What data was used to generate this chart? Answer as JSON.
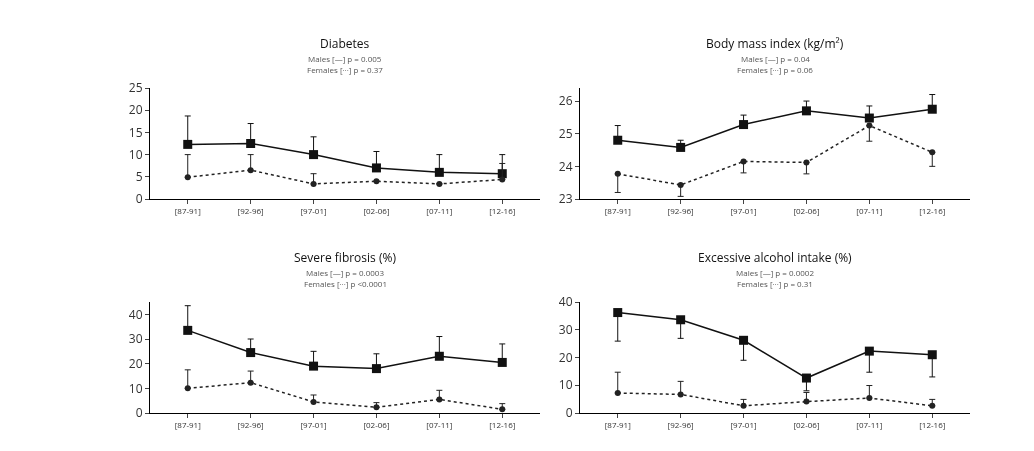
{
  "chart_data": [
    {
      "type": "line",
      "title": "Diabetes",
      "subtitle": "Males [—] p = 0.005\nFemales [···] p = 0.37",
      "categories": [
        "[87-91]",
        "[92-96]",
        "[97-01]",
        "[02-06]",
        "[07-11]",
        "[12-16]"
      ],
      "ylim": [
        0,
        25
      ],
      "yticks": [
        0,
        5,
        10,
        15,
        20,
        25
      ],
      "grid": false,
      "series": [
        {
          "color": "#111111",
          "marker": "square",
          "line_style": "solid",
          "values": [
            12.3,
            12.5,
            10,
            7,
            6,
            5.7
          ],
          "errors": [
            [
              12.3,
              18.7
            ],
            [
              12.5,
              17
            ],
            [
              10,
              14
            ],
            [
              7,
              10.7
            ],
            [
              6,
              10
            ],
            [
              5.7,
              10
            ]
          ]
        },
        {
          "color": "#222222",
          "marker": "circle",
          "line_style": "dotted",
          "values": [
            4.9,
            6.5,
            3.4,
            4,
            3.4,
            4.4
          ],
          "errors": [
            [
              4.9,
              10
            ],
            [
              6.5,
              10
            ],
            [
              3.4,
              5.7
            ],
            null,
            null,
            [
              4.4,
              8
            ]
          ]
        }
      ]
    },
    {
      "type": "line",
      "title": "Body mass index (kg/m²)",
      "subtitle": "Males [—] p = 0.04\nFemales [···] p = 0.06",
      "categories": [
        "[87-91]",
        "[92-96]",
        "[97-01]",
        "[02-06]",
        "[07-11]",
        "[12-16]"
      ],
      "ylim": [
        23,
        26.4
      ],
      "yticks": [
        23,
        24,
        25,
        26
      ],
      "grid": false,
      "series": [
        {
          "color": "#111111",
          "marker": "square",
          "line_style": "solid",
          "values": [
            24.8,
            24.58,
            25.28,
            25.7,
            25.48,
            25.75
          ],
          "errors": [
            [
              24.8,
              25.25
            ],
            [
              24.58,
              24.8
            ],
            [
              25.28,
              25.57
            ],
            [
              25.7,
              26
            ],
            [
              25.48,
              25.85
            ],
            [
              25.75,
              26.2
            ]
          ]
        },
        {
          "color": "#222222",
          "marker": "circle",
          "line_style": "dotted",
          "values": [
            23.77,
            23.43,
            24.15,
            24.12,
            25.25,
            24.43
          ],
          "errors": [
            [
              23.2,
              23.77
            ],
            [
              23.08,
              23.43
            ],
            [
              23.8,
              24.15
            ],
            [
              23.77,
              24.12
            ],
            [
              24.77,
              25.25
            ],
            [
              24,
              24.43
            ]
          ]
        }
      ]
    },
    {
      "type": "line",
      "title": "Severe fibrosis (%)",
      "subtitle": "Males [—] p = 0.0003\nFemales [···] p <0.0001",
      "categories": [
        "[87-91]",
        "[92-96]",
        "[97-01]",
        "[02-06]",
        "[07-11]",
        "[12-16]"
      ],
      "ylim": [
        0,
        45
      ],
      "yticks": [
        0,
        10,
        20,
        30,
        40
      ],
      "grid": false,
      "series": [
        {
          "color": "#111111",
          "marker": "square",
          "line_style": "solid",
          "values": [
            33.5,
            24.5,
            19,
            18,
            23,
            20.5
          ],
          "errors": [
            [
              33.5,
              43.5
            ],
            [
              24.5,
              30
            ],
            [
              19,
              25
            ],
            [
              18,
              24
            ],
            [
              23,
              31
            ],
            [
              20.5,
              28
            ]
          ]
        },
        {
          "color": "#222222",
          "marker": "circle",
          "line_style": "dotted",
          "values": [
            10,
            12.3,
            4.5,
            2.3,
            5.5,
            1.5
          ],
          "errors": [
            [
              10,
              17.5
            ],
            [
              12.3,
              17
            ],
            [
              4.5,
              7.3
            ],
            [
              2.3,
              4.2
            ],
            [
              5.5,
              9.2
            ],
            [
              1.5,
              3.8
            ]
          ]
        }
      ]
    },
    {
      "type": "line",
      "title": "Excessive alcohol intake (%)",
      "subtitle": "Males [—] p = 0.0002\nFemales [···] p = 0.31",
      "categories": [
        "[87-91]",
        "[92-96]",
        "[97-01]",
        "[02-06]",
        "[07-11]",
        "[12-16]"
      ],
      "ylim": [
        0,
        40
      ],
      "yticks": [
        0,
        10,
        20,
        30,
        40
      ],
      "grid": false,
      "series": [
        {
          "color": "#111111",
          "marker": "square",
          "line_style": "solid",
          "values": [
            36.2,
            33.6,
            26.2,
            12.6,
            22.3,
            21
          ],
          "errors": [
            [
              25.9,
              36.2
            ],
            [
              26.9,
              33.6
            ],
            [
              19,
              26.2
            ],
            [
              8,
              12.6
            ],
            [
              14.7,
              22.3
            ],
            [
              13,
              21
            ]
          ]
        },
        {
          "color": "#222222",
          "marker": "circle",
          "line_style": "dotted",
          "values": [
            7.2,
            6.7,
            2.6,
            4.1,
            5.4,
            2.6
          ],
          "errors": [
            [
              7.2,
              14.7
            ],
            [
              6.7,
              11.4
            ],
            [
              2.6,
              4.9
            ],
            [
              4.1,
              7.4
            ],
            [
              5.4,
              9.9
            ],
            [
              2.6,
              4.9
            ]
          ]
        }
      ]
    }
  ]
}
